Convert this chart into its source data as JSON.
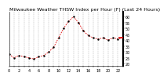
{
  "title": "Milwaukee Weather THSW Index per Hour (F) (Last 24 Hours)",
  "x_values": [
    0,
    1,
    2,
    3,
    4,
    5,
    6,
    7,
    8,
    9,
    10,
    11,
    12,
    13,
    14,
    15,
    16,
    17,
    18,
    19,
    20,
    21,
    22,
    23
  ],
  "y_values": [
    28,
    25,
    27,
    26,
    25,
    24,
    26,
    27,
    30,
    34,
    42,
    50,
    56,
    60,
    55,
    48,
    44,
    42,
    41,
    42,
    40,
    42,
    41,
    42
  ],
  "current_value": 42,
  "ylim": [
    18,
    64
  ],
  "xlim": [
    0,
    23
  ],
  "ytick_values": [
    20,
    25,
    30,
    35,
    40,
    45,
    50,
    55,
    60
  ],
  "ytick_labels": [
    "20",
    "25",
    "30",
    "35",
    "40",
    "45",
    "50",
    "55",
    "60"
  ],
  "line_color": "#dd0000",
  "marker_color": "#000000",
  "bg_color": "#ffffff",
  "plot_bg_color": "#ffffff",
  "grid_color": "#888888",
  "border_color": "#000000",
  "title_fontsize": 4.5,
  "tick_fontsize": 3.5,
  "vgrid_positions": [
    0,
    1,
    2,
    3,
    4,
    5,
    6,
    7,
    8,
    9,
    10,
    11,
    12,
    13,
    14,
    15,
    16,
    17,
    18,
    19,
    20,
    21,
    22,
    23
  ]
}
